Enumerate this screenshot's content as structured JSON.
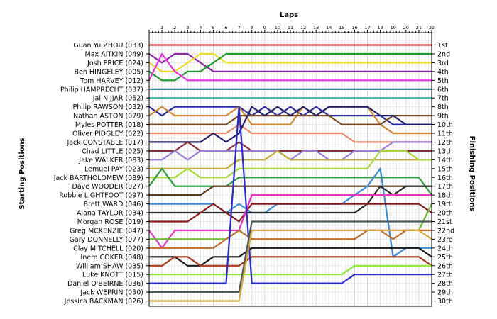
{
  "chart_data": {
    "type": "line",
    "title": "Laps",
    "ylabel_left": "Starting Positions",
    "ylabel_right": "Finishing Positions",
    "x": [
      0,
      1,
      2,
      3,
      4,
      5,
      6,
      7,
      8,
      9,
      10,
      11,
      12,
      13,
      14,
      15,
      16,
      17,
      18,
      19,
      20,
      21,
      22
    ],
    "y_inverted": true,
    "ylim": [
      1,
      30
    ],
    "grid": true,
    "finish_labels": [
      "1st",
      "2nd",
      "3rd",
      "4th",
      "5th",
      "6th",
      "7th",
      "8th",
      "9th",
      "10th",
      "11th",
      "12th",
      "13th",
      "14th",
      "15th",
      "16th",
      "17th",
      "18th",
      "19th",
      "20th",
      "21st",
      "22nd",
      "23rd",
      "24th",
      "25th",
      "26th",
      "27th",
      "28th",
      "29th",
      "30th"
    ],
    "series": [
      {
        "name": "Guan Yu ZHOU (033)",
        "color": "#e8323a",
        "values": [
          1,
          1,
          1,
          1,
          1,
          1,
          1,
          1,
          1,
          1,
          1,
          1,
          1,
          1,
          1,
          1,
          1,
          1,
          1,
          1,
          1,
          1,
          1
        ]
      },
      {
        "name": "Max AITKIN (049)",
        "color": "#8b22a8",
        "values": [
          2,
          3,
          2,
          2,
          3,
          4,
          4,
          4,
          4,
          4,
          4,
          4,
          4,
          4,
          4,
          4,
          4,
          4,
          4,
          4,
          4,
          4,
          4
        ]
      },
      {
        "name": "Josh PRICE (024)",
        "color": "#ecdc23",
        "values": [
          3,
          4,
          4,
          3,
          2,
          2,
          3,
          3,
          3,
          3,
          3,
          3,
          3,
          3,
          3,
          3,
          3,
          3,
          3,
          3,
          3,
          3,
          3
        ]
      },
      {
        "name": "Ben HINGELEY (005)",
        "color": "#1a9a2a",
        "values": [
          4,
          5,
          5,
          4,
          4,
          3,
          2,
          2,
          2,
          2,
          2,
          2,
          2,
          2,
          2,
          2,
          2,
          2,
          2,
          2,
          2,
          2,
          2
        ]
      },
      {
        "name": "Tom HARVEY (012)",
        "color": "#e532e0",
        "values": [
          5,
          2,
          4,
          5,
          5,
          5,
          5,
          5,
          5,
          5,
          5,
          5,
          5,
          5,
          5,
          5,
          5,
          5,
          5,
          5,
          5,
          5,
          5
        ]
      },
      {
        "name": "Philip HAMPRECHT (037)",
        "color": "#1e7c8c",
        "values": [
          6,
          6,
          6,
          6,
          6,
          6,
          6,
          6,
          6,
          6,
          6,
          6,
          6,
          6,
          6,
          6,
          6,
          6,
          6,
          6,
          6,
          6,
          6
        ]
      },
      {
        "name": "Jai NIJJAR (052)",
        "color": "#3cb3a8",
        "values": [
          7,
          7,
          7,
          7,
          7,
          7,
          7,
          7,
          7,
          7,
          7,
          7,
          7,
          7,
          7,
          7,
          7,
          7,
          7,
          7,
          7,
          7,
          7
        ]
      },
      {
        "name": "Philip RAWSON (032)",
        "color": "#2a2aa8",
        "values": [
          8,
          9,
          8,
          8,
          8,
          8,
          8,
          8,
          9,
          8,
          9,
          8,
          9,
          8,
          9,
          9,
          9,
          9,
          9,
          10,
          10,
          10,
          10
        ]
      },
      {
        "name": "Nathan ASTON (079)",
        "color": "#d48630",
        "values": [
          9,
          8,
          9,
          9,
          9,
          9,
          9,
          8,
          10,
          10,
          10,
          10,
          8,
          9,
          8,
          8,
          8,
          8,
          10,
          11,
          11,
          11,
          11
        ]
      },
      {
        "name": "Myles POTTER (018)",
        "color": "#7a4a24",
        "values": [
          10,
          10,
          10,
          10,
          10,
          10,
          10,
          9,
          9,
          9,
          9,
          9,
          9,
          9,
          9,
          10,
          10,
          10,
          10,
          9,
          9,
          9,
          9
        ]
      },
      {
        "name": "Oliver PIDGLEY (022)",
        "color": "#e88a6a",
        "values": [
          11,
          11,
          11,
          11,
          11,
          11,
          11,
          10,
          11,
          11,
          11,
          11,
          11,
          11,
          11,
          11,
          12,
          12,
          12,
          12,
          12,
          12,
          12
        ]
      },
      {
        "name": "Jack CONSTABLE (017)",
        "color": "#1e1e6a",
        "values": [
          12,
          12,
          12,
          12,
          12,
          11,
          12,
          11,
          8,
          9,
          8,
          9,
          8,
          9,
          8,
          8,
          8,
          8,
          9,
          9,
          10,
          10,
          10
        ]
      },
      {
        "name": "Chad LITTLE (025)",
        "color": "#8a2a38",
        "values": [
          13,
          13,
          13,
          12,
          13,
          13,
          13,
          12,
          13,
          13,
          13,
          13,
          13,
          13,
          13,
          13,
          13,
          13,
          13,
          13,
          13,
          13,
          13
        ]
      },
      {
        "name": "Jake WALKER (083)",
        "color": "#9a7ad8",
        "values": [
          14,
          14,
          13,
          14,
          13,
          13,
          13,
          13,
          13,
          13,
          13,
          14,
          13,
          13,
          14,
          14,
          13,
          13,
          13,
          12,
          12,
          12,
          12
        ]
      },
      {
        "name": "Lemuel PAY (023)",
        "color": "#c4a838",
        "values": [
          15,
          15,
          15,
          15,
          15,
          15,
          15,
          14,
          14,
          14,
          13,
          14,
          14,
          14,
          14,
          14,
          14,
          14,
          14,
          14,
          14,
          14,
          14
        ]
      },
      {
        "name": "Jack BARTHOLOMEW (089)",
        "color": "#a8d838",
        "values": [
          16,
          16,
          16,
          15,
          16,
          16,
          16,
          15,
          15,
          15,
          15,
          15,
          15,
          15,
          15,
          15,
          15,
          15,
          13,
          13,
          13,
          14,
          14
        ]
      },
      {
        "name": "Dave WOODER (027)",
        "color": "#2a9a3a",
        "values": [
          17,
          15,
          17,
          17,
          17,
          17,
          17,
          16,
          16,
          16,
          16,
          16,
          16,
          16,
          16,
          16,
          16,
          16,
          16,
          16,
          16,
          16,
          18
        ]
      },
      {
        "name": "Robbie LIGHTFOOT (097)",
        "color": "#5a3a1a",
        "values": [
          18,
          18,
          18,
          18,
          18,
          17,
          17,
          17,
          17,
          17,
          17,
          17,
          17,
          17,
          17,
          17,
          17,
          17,
          17,
          17,
          17,
          17,
          17
        ]
      },
      {
        "name": "Brett WARD (046)",
        "color": "#3a8ad8",
        "values": [
          19,
          19,
          19,
          19,
          19,
          19,
          20,
          19,
          20,
          20,
          19,
          19,
          19,
          19,
          19,
          19,
          18,
          17,
          15,
          25,
          24,
          24,
          24
        ]
      },
      {
        "name": "Alana TAYLOR (034)",
        "color": "#2a2a2a",
        "values": [
          20,
          20,
          20,
          20,
          20,
          20,
          20,
          20,
          20,
          20,
          20,
          20,
          20,
          20,
          20,
          20,
          20,
          19,
          17,
          18,
          17,
          17,
          17
        ]
      },
      {
        "name": "Morgan ROSE (019)",
        "color": "#8a1a1a",
        "values": [
          21,
          21,
          21,
          21,
          20,
          19,
          20,
          21,
          19,
          19,
          19,
          19,
          19,
          19,
          19,
          19,
          19,
          19,
          19,
          19,
          19,
          19,
          20
        ]
      },
      {
        "name": "Greg MCKENZIE (047)",
        "color": "#e632c8",
        "values": [
          22,
          24,
          22,
          22,
          22,
          22,
          22,
          22,
          18,
          18,
          18,
          18,
          18,
          18,
          18,
          18,
          18,
          18,
          18,
          18,
          18,
          18,
          18
        ]
      },
      {
        "name": "Gary DONNELLY (077)",
        "color": "#6ab832",
        "values": [
          23,
          23,
          23,
          23,
          23,
          23,
          23,
          22,
          23,
          23,
          23,
          23,
          23,
          23,
          23,
          23,
          23,
          22,
          22,
          22,
          22,
          22,
          19
        ]
      },
      {
        "name": "Clay MITCHELL (020)",
        "color": "#c06a2a",
        "values": [
          24,
          24,
          24,
          24,
          24,
          24,
          23,
          22,
          23,
          23,
          23,
          23,
          23,
          23,
          23,
          23,
          23,
          22,
          22,
          23,
          22,
          22,
          22
        ]
      },
      {
        "name": "Inem COKER (048)",
        "color": "#1a1a1a",
        "values": [
          25,
          25,
          25,
          26,
          26,
          25,
          25,
          25,
          24,
          24,
          24,
          24,
          24,
          24,
          24,
          24,
          24,
          24,
          24,
          24,
          24,
          24,
          25
        ]
      },
      {
        "name": "William SHAW (035)",
        "color": "#a83a1a",
        "values": [
          26,
          26,
          25,
          25,
          26,
          26,
          26,
          26,
          25,
          25,
          25,
          25,
          25,
          25,
          25,
          25,
          25,
          25,
          25,
          25,
          25,
          25,
          26
        ]
      },
      {
        "name": "Luke KNOTT (015)",
        "color": "#8ae832",
        "values": [
          27,
          27,
          27,
          27,
          27,
          27,
          27,
          27,
          27,
          27,
          27,
          27,
          27,
          27,
          27,
          27,
          26,
          26,
          26,
          26,
          26,
          26,
          26
        ]
      },
      {
        "name": "Daniel O'BEIRNE (036)",
        "color": "#2a2ac8",
        "values": [
          28,
          28,
          28,
          28,
          28,
          28,
          28,
          8,
          28,
          28,
          28,
          28,
          28,
          28,
          28,
          28,
          27,
          27,
          27,
          27,
          27,
          27,
          27
        ]
      },
      {
        "name": "Jack WEPRIN (050)",
        "color": "#4a5a5a",
        "values": [
          29,
          29,
          29,
          29,
          29,
          29,
          29,
          29,
          21,
          21,
          21,
          21,
          21,
          21,
          21,
          21,
          21,
          21,
          21,
          21,
          21,
          21,
          21
        ]
      },
      {
        "name": "Jessica BACKMAN (026)",
        "color": "#d8a838",
        "values": [
          30,
          30,
          30,
          30,
          30,
          30,
          30,
          30,
          22,
          22,
          22,
          22,
          22,
          22,
          22,
          22,
          22,
          22,
          22,
          22,
          22,
          22,
          23
        ]
      }
    ]
  }
}
